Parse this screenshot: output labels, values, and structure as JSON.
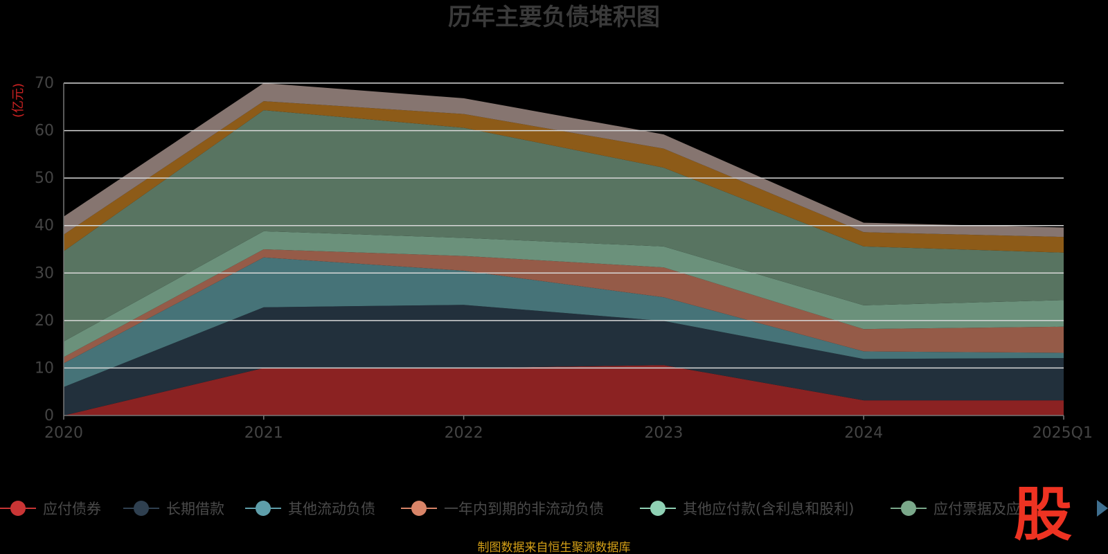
{
  "chart_data": {
    "type": "area",
    "stacked": true,
    "title": "历年主要负债堆积图",
    "unit_label": "(亿元)",
    "x": [
      "2020",
      "2021",
      "2022",
      "2023",
      "2024",
      "2025Q1"
    ],
    "y_ticks": [
      "0",
      "10",
      "20",
      "30",
      "40",
      "50",
      "60",
      "70"
    ],
    "ylim": [
      0,
      70
    ],
    "grid": true,
    "legend_position": "bottom",
    "series": [
      {
        "name": "应付债券",
        "color": "#8b2222",
        "values": [
          0,
          10,
          10,
          10.6,
          3.2,
          3.2
        ]
      },
      {
        "name": "长期借款",
        "color": "#22303c",
        "values": [
          6,
          12.8,
          13.3,
          9.3,
          8.7,
          8.9
        ]
      },
      {
        "name": "其他流动负债",
        "color": "#467378",
        "values": [
          5,
          10.5,
          7.2,
          5,
          1.6,
          1.1
        ]
      },
      {
        "name": "一年内到期的非流动负债",
        "color": "#955b48",
        "values": [
          1.3,
          1.7,
          3.1,
          6.3,
          4.7,
          5.5
        ]
      },
      {
        "name": "其他应付款(含利息和股利)",
        "color": "#6b917b",
        "values": [
          3.3,
          3.8,
          3.8,
          4.4,
          5,
          5.6
        ]
      },
      {
        "name": "应付票据及应付账款",
        "color": "#587461",
        "values": [
          19,
          25.5,
          23.2,
          16.6,
          12.4,
          10
        ]
      },
      {
        "name": "",
        "color": "#8d5b18",
        "values": [
          3.5,
          1.9,
          2.9,
          4,
          3,
          3.3
        ]
      },
      {
        "name": "",
        "color": "#867570",
        "values": [
          3.8,
          3.8,
          3.3,
          3,
          2,
          2
        ]
      }
    ],
    "legend_visible": [
      "应付债券",
      "长期借款",
      "其他流动负债",
      "一年内到期的非流动负债",
      "其他应付款(含利息和股利)",
      "应付票据及应"
    ],
    "legend_marker_colors": [
      "#c93535",
      "#2f4050",
      "#5e9eaa",
      "#d88468",
      "#8fd1b4",
      "#7aa88a"
    ]
  },
  "source_note": "制图数据来自恒生聚源数据库",
  "logo_text": "股"
}
